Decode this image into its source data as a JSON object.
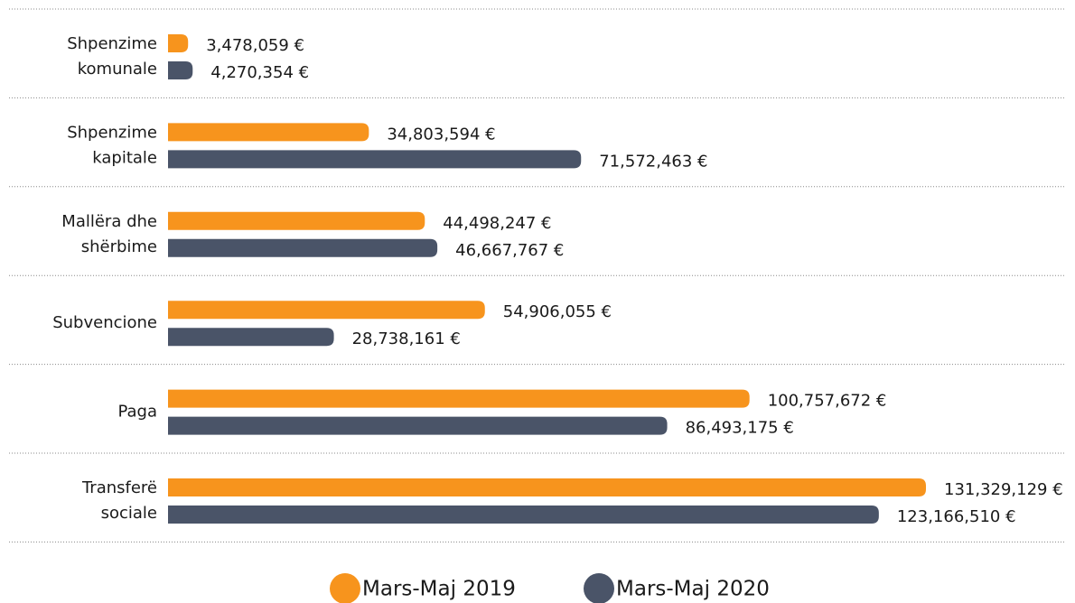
{
  "chart_data": {
    "type": "barh",
    "categories": [
      "Shpenzime\nkomunale",
      "Shpenzime\nkapitale",
      "Mallëra dhe\nshërbime",
      "Subvencione",
      "Paga",
      "Transferë\nsociale"
    ],
    "series": [
      {
        "name": "Mars-Maj 2019",
        "color": "#f7941d",
        "values": [
          3478059,
          34803594,
          44498247,
          54906055,
          100757672,
          131329129
        ],
        "value_labels": [
          "3,478,059  €",
          "34,803,594  €",
          "44,498,247  €",
          "54,906,055  €",
          "100,757,672  €",
          "131,329,129  €"
        ]
      },
      {
        "name": "Mars-Maj 2020",
        "color": "#4a5468",
        "values": [
          4270354,
          71572463,
          46667767,
          28738161,
          86493175,
          123166510
        ],
        "value_labels": [
          "4,270,354  €",
          "71,572,463  €",
          "46,667,767  €",
          "28,738,161  €",
          "86,493,175  €",
          "123,166,510  €"
        ]
      }
    ],
    "legend": "bottom"
  }
}
